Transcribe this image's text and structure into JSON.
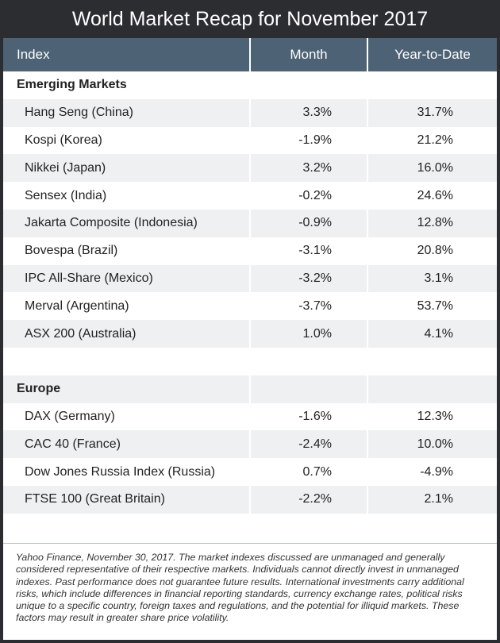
{
  "title": "World Market Recap for November 2017",
  "header": {
    "index": "Index",
    "month": "Month",
    "ytd": "Year-to-Date"
  },
  "rows": [
    {
      "index": "Emerging Markets",
      "month": "",
      "ytd": ""
    },
    {
      "index": "Hang Seng (China)",
      "month": "3.3%",
      "ytd": "31.7%"
    },
    {
      "index": "Kospi (Korea)",
      "month": "-1.9%",
      "ytd": "21.2%"
    },
    {
      "index": "Nikkei (Japan)",
      "month": "3.2%",
      "ytd": "16.0%"
    },
    {
      "index": "Sensex (India)",
      "month": "-0.2%",
      "ytd": "24.6%"
    },
    {
      "index": "Jakarta Composite (Indonesia)",
      "month": "-0.9%",
      "ytd": "12.8%"
    },
    {
      "index": "Bovespa (Brazil)",
      "month": "-3.1%",
      "ytd": "20.8%"
    },
    {
      "index": "IPC All-Share (Mexico)",
      "month": "-3.2%",
      "ytd": "3.1%"
    },
    {
      "index": "Merval (Argentina)",
      "month": "-3.7%",
      "ytd": "53.7%"
    },
    {
      "index": "ASX 200 (Australia)",
      "month": "1.0%",
      "ytd": "4.1%"
    },
    {
      "index": "",
      "month": "",
      "ytd": ""
    },
    {
      "index": "Europe",
      "month": "",
      "ytd": ""
    },
    {
      "index": "DAX (Germany)",
      "month": "-1.6%",
      "ytd": "12.3%"
    },
    {
      "index": "CAC 40 (France)",
      "month": "-2.4%",
      "ytd": "10.0%"
    },
    {
      "index": "Dow Jones Russia Index (Russia)",
      "month": "0.7%",
      "ytd": "-4.9%"
    },
    {
      "index": "FTSE 100 (Great Britain)",
      "month": "-2.2%",
      "ytd": "2.1%"
    },
    {
      "index": "",
      "month": "",
      "ytd": ""
    }
  ],
  "footnote": "Yahoo Finance, November 30, 2017. The market indexes discussed are unmanaged and generally considered representative of their respective markets. Individuals cannot directly invest in unmanaged indexes. Past performance does not guarantee future results. International investments carry additional risks, which include differences in financial reporting standards, currency exchange rates, political risks unique to a specific country, foreign taxes and regulations, and the potential for illiquid markets. These factors may result in greater share price volatility."
}
